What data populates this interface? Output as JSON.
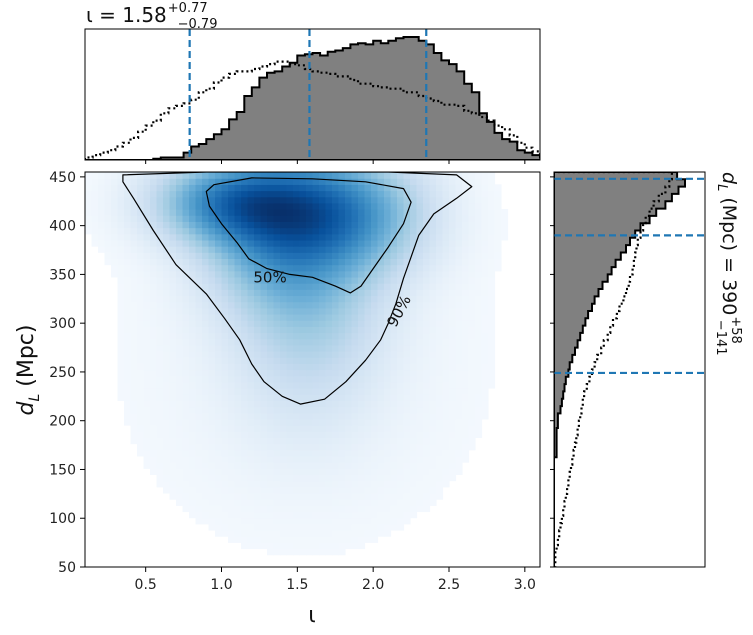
{
  "chart_data": [
    {
      "type": "heatmap",
      "panel": "joint",
      "xlabel": "ι",
      "ylabel_main": "d",
      "ylabel_sub": "L",
      "ylabel_unit": "(Mpc)",
      "xlim": [
        0.1,
        3.1
      ],
      "ylim": [
        50,
        455
      ],
      "x_ticks": [
        0.5,
        1.0,
        1.5,
        2.0,
        2.5,
        3.0
      ],
      "x_tick_labels": [
        "0.5",
        "1.0",
        "1.5",
        "2.0",
        "2.5",
        "3.0"
      ],
      "y_ticks": [
        50,
        100,
        150,
        200,
        250,
        300,
        350,
        400,
        450
      ],
      "y_tick_labels": [
        "50",
        "100",
        "150",
        "200",
        "250",
        "300",
        "350",
        "400",
        "450"
      ],
      "colormap": "Blues",
      "density_peaks": [
        {
          "x": 1.05,
          "y": 425,
          "weight": 1.0
        },
        {
          "x": 1.5,
          "y": 420,
          "weight": 0.75
        },
        {
          "x": 1.9,
          "y": 412,
          "weight": 0.7
        },
        {
          "x": 1.35,
          "y": 380,
          "weight": 0.55
        },
        {
          "x": 1.6,
          "y": 330,
          "weight": 0.35
        },
        {
          "x": 1.55,
          "y": 260,
          "weight": 0.15
        }
      ],
      "contours": [
        {
          "level": "50%",
          "label": "50%",
          "points": [
            [
              0.95,
              442
            ],
            [
              1.2,
              449
            ],
            [
              1.6,
              448
            ],
            [
              1.95,
              445
            ],
            [
              2.2,
              438
            ],
            [
              2.25,
              424
            ],
            [
              2.2,
              402
            ],
            [
              2.1,
              378
            ],
            [
              2.0,
              356
            ],
            [
              1.92,
              338
            ],
            [
              1.85,
              331
            ],
            [
              1.75,
              338
            ],
            [
              1.6,
              347
            ],
            [
              1.45,
              350
            ],
            [
              1.3,
              356
            ],
            [
              1.18,
              366
            ],
            [
              1.1,
              383
            ],
            [
              1.0,
              402
            ],
            [
              0.92,
              420
            ],
            [
              0.9,
              435
            ]
          ]
        },
        {
          "level": "90%",
          "label": "90%",
          "points": [
            [
              0.35,
              452
            ],
            [
              0.9,
              455
            ],
            [
              1.5,
              455
            ],
            [
              2.1,
              455
            ],
            [
              2.55,
              452
            ],
            [
              2.65,
              440
            ],
            [
              2.55,
              428
            ],
            [
              2.4,
              412
            ],
            [
              2.3,
              390
            ],
            [
              2.25,
              368
            ],
            [
              2.2,
              346
            ],
            [
              2.15,
              320
            ],
            [
              2.1,
              300
            ],
            [
              2.05,
              283
            ],
            [
              1.95,
              262
            ],
            [
              1.82,
              240
            ],
            [
              1.68,
              222
            ],
            [
              1.52,
              217
            ],
            [
              1.4,
              225
            ],
            [
              1.28,
              240
            ],
            [
              1.2,
              258
            ],
            [
              1.12,
              283
            ],
            [
              1.02,
              305
            ],
            [
              0.9,
              330
            ],
            [
              0.7,
              360
            ],
            [
              0.55,
              395
            ],
            [
              0.42,
              428
            ],
            [
              0.35,
              445
            ]
          ]
        }
      ]
    },
    {
      "type": "bar",
      "panel": "top-marginal",
      "title": "ι = 1.58",
      "title_sup": "+0.77",
      "title_sub": "−0.79",
      "xlim": [
        0.1,
        3.1
      ],
      "bin_edges_start": 0.1,
      "bin_width": 0.05,
      "histogram_filled": [
        0,
        0,
        0,
        0,
        0,
        0,
        0,
        0,
        0,
        0.01,
        0.02,
        0.02,
        0.02,
        0.06,
        0.11,
        0.13,
        0.17,
        0.21,
        0.25,
        0.33,
        0.39,
        0.52,
        0.59,
        0.67,
        0.71,
        0.72,
        0.76,
        0.79,
        0.85,
        0.86,
        0.87,
        0.85,
        0.88,
        0.89,
        0.91,
        0.94,
        0.95,
        0.94,
        0.97,
        0.95,
        0.97,
        0.99,
        1.0,
        1.0,
        0.97,
        0.94,
        0.87,
        0.81,
        0.78,
        0.72,
        0.62,
        0.55,
        0.38,
        0.31,
        0.22,
        0.17,
        0.15,
        0.08,
        0.06,
        0.04,
        0.02
      ],
      "histogram_prior_dotted": [
        0.02,
        0.04,
        0.06,
        0.08,
        0.11,
        0.14,
        0.18,
        0.23,
        0.28,
        0.32,
        0.38,
        0.42,
        0.44,
        0.46,
        0.49,
        0.55,
        0.58,
        0.63,
        0.67,
        0.7,
        0.72,
        0.72,
        0.74,
        0.76,
        0.78,
        0.8,
        0.8,
        0.78,
        0.77,
        0.74,
        0.72,
        0.71,
        0.7,
        0.68,
        0.68,
        0.65,
        0.62,
        0.62,
        0.6,
        0.59,
        0.58,
        0.58,
        0.55,
        0.55,
        0.52,
        0.5,
        0.48,
        0.45,
        0.45,
        0.44,
        0.4,
        0.38,
        0.35,
        0.32,
        0.28,
        0.25,
        0.2,
        0.14,
        0.1,
        0.07,
        0.04
      ],
      "quantile_lines": [
        0.79,
        1.58,
        2.35
      ]
    },
    {
      "type": "bar",
      "panel": "right-marginal",
      "ylabel_main": "d",
      "ylabel_sub": "L",
      "ylabel_rest": "(Mpc) = 390",
      "ylabel_sup": "+58",
      "ylabel_sub_err": "−141",
      "ylim": [
        50,
        455
      ],
      "bin_edges_start": 50,
      "bin_width": 7.5,
      "histogram_filled": [
        0.0,
        0.0,
        0.0,
        0.0,
        0.0,
        0.0,
        0.0,
        0.0,
        0.0,
        0.0,
        0.0,
        0.0,
        0.0,
        0.0,
        0.0,
        0.02,
        0.02,
        0.02,
        0.02,
        0.03,
        0.03,
        0.05,
        0.06,
        0.07,
        0.08,
        0.09,
        0.11,
        0.12,
        0.14,
        0.16,
        0.18,
        0.2,
        0.22,
        0.24,
        0.26,
        0.29,
        0.31,
        0.34,
        0.37,
        0.41,
        0.44,
        0.47,
        0.51,
        0.55,
        0.58,
        0.62,
        0.66,
        0.73,
        0.78,
        0.85,
        0.9,
        0.95,
        1.0,
        0.94
      ],
      "histogram_prior_dotted": [
        0.01,
        0.01,
        0.02,
        0.03,
        0.04,
        0.05,
        0.06,
        0.07,
        0.08,
        0.09,
        0.1,
        0.11,
        0.12,
        0.13,
        0.14,
        0.15,
        0.16,
        0.17,
        0.18,
        0.19,
        0.2,
        0.21,
        0.22,
        0.23,
        0.25,
        0.27,
        0.29,
        0.31,
        0.33,
        0.36,
        0.38,
        0.41,
        0.43,
        0.45,
        0.48,
        0.5,
        0.53,
        0.55,
        0.57,
        0.58,
        0.6,
        0.61,
        0.62,
        0.63,
        0.64,
        0.66,
        0.68,
        0.7,
        0.73,
        0.76,
        0.8,
        0.85,
        0.88,
        0.9
      ],
      "quantile_lines": [
        249,
        390,
        448
      ]
    }
  ]
}
